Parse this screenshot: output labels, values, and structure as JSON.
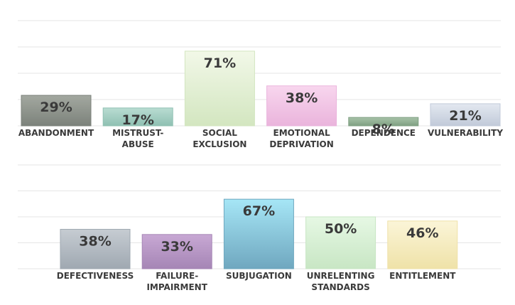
{
  "chart_data": [
    {
      "type": "bar",
      "grid": true,
      "legend": "none",
      "ylim": [
        0,
        100
      ],
      "categories": [
        [
          "ABANDONMENT"
        ],
        [
          "MISTRUST-",
          "ABUSE"
        ],
        [
          "SOCIAL",
          "EXCLUSION"
        ],
        [
          "EMOTIONAL",
          "DEPRIVATION"
        ],
        [
          "DEPENDENCE"
        ],
        [
          "VULNERABILITY"
        ]
      ],
      "values": [
        29,
        17,
        71,
        38,
        8,
        21
      ],
      "value_labels": [
        "29%",
        "17%",
        "71%",
        "38%",
        "8%",
        "21%"
      ],
      "colors": [
        [
          "#a3a8a0",
          "#7c827b"
        ],
        [
          "#b9dcd2",
          "#8fc0b2"
        ],
        [
          "#f2f8e8",
          "#d3e6c0"
        ],
        [
          "#f8d6ee",
          "#eab4dc"
        ],
        [
          "#a7c2a8",
          "#7fa082"
        ],
        [
          "#e3e8f0",
          "#c1cad9"
        ]
      ]
    },
    {
      "type": "bar",
      "grid": true,
      "legend": "none",
      "ylim": [
        0,
        100
      ],
      "categories": [
        [
          "DEFECTIVENESS"
        ],
        [
          "FAILURE-",
          "IMPAIRMENT"
        ],
        [
          "SUBJUGATION"
        ],
        [
          "UNRELENTING",
          "STANDARDS"
        ],
        [
          "ENTITLEMENT"
        ]
      ],
      "values": [
        38,
        33,
        67,
        50,
        46
      ],
      "value_labels": [
        "38%",
        "33%",
        "67%",
        "50%",
        "46%"
      ],
      "colors": [
        [
          "#c6ccd2",
          "#9fa8b1"
        ],
        [
          "#c8a8d4",
          "#a585b5"
        ],
        [
          "#a6e6f6",
          "#6fa7bf"
        ],
        [
          "#e6f8e4",
          "#c8e6c4"
        ],
        [
          "#fbf5d8",
          "#efe2a8"
        ]
      ]
    }
  ]
}
